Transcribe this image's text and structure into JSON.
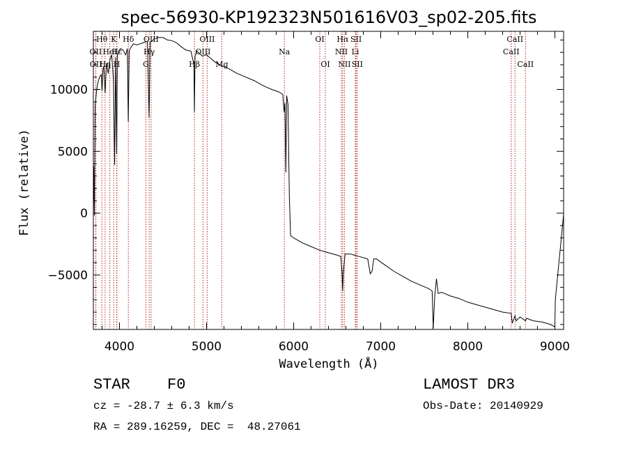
{
  "chart_data": {
    "type": "line",
    "title": "spec-56930-KP192323N501616V03_sp02-205.fits",
    "xlabel": "Wavelength (Å)",
    "ylabel": "Flux (relative)",
    "xlim": [
      3700,
      9100
    ],
    "ylim": [
      -9400,
      14700
    ],
    "xticks": [
      4000,
      5000,
      6000,
      7000,
      8000,
      9000
    ],
    "yticks": [
      -5000,
      0,
      5000,
      10000
    ],
    "series": [
      {
        "name": "flux",
        "x": [
          3700,
          3705,
          3712,
          3720,
          3735,
          3750,
          3770,
          3790,
          3800,
          3810,
          3820,
          3835,
          3850,
          3870,
          3890,
          3910,
          3930,
          3945,
          3955,
          3968,
          3975,
          3990,
          4010,
          4040,
          4070,
          4090,
          4101,
          4112,
          4130,
          4160,
          4200,
          4240,
          4280,
          4320,
          4340,
          4352,
          4370,
          4400,
          4450,
          4500,
          4550,
          4600,
          4650,
          4700,
          4760,
          4820,
          4855,
          4861,
          4868,
          4890,
          4950,
          5000,
          5050,
          5100,
          5180,
          5250,
          5350,
          5450,
          5550,
          5650,
          5750,
          5830,
          5875,
          5890,
          5900,
          5910,
          5920,
          5935,
          5950,
          5965,
          5980,
          6000,
          6100,
          6200,
          6300,
          6400,
          6500,
          6540,
          6556,
          6563,
          6570,
          6590,
          6650,
          6750,
          6850,
          6880,
          6900,
          6920,
          6950,
          7050,
          7150,
          7250,
          7350,
          7450,
          7550,
          7590,
          7603,
          7620,
          7640,
          7660,
          7700,
          7800,
          7900,
          8000,
          8100,
          8200,
          8300,
          8400,
          8498,
          8510,
          8542,
          8555,
          8600,
          8662,
          8675,
          8750,
          8850,
          8950,
          9000,
          9005,
          9100
        ],
        "values": [
          0,
          3800,
          -200,
          8600,
          9800,
          10500,
          11000,
          11200,
          9900,
          11600,
          11900,
          9700,
          12100,
          11300,
          12400,
          12800,
          10800,
          3900,
          12600,
          4800,
          12700,
          13100,
          13300,
          13200,
          12800,
          13300,
          7400,
          13100,
          13400,
          13700,
          13600,
          13700,
          13800,
          13900,
          7700,
          13800,
          13900,
          14100,
          14200,
          14200,
          14000,
          13950,
          13800,
          13500,
          13200,
          13100,
          12000,
          8200,
          12700,
          13100,
          12700,
          12800,
          12500,
          12200,
          11900,
          11700,
          11300,
          11000,
          10700,
          10300,
          10000,
          9800,
          9600,
          8200,
          8900,
          3300,
          9500,
          8800,
          1400,
          -1800,
          -1900,
          -2000,
          -2400,
          -2700,
          -3000,
          -3200,
          -3400,
          -3500,
          -4800,
          -6300,
          -4800,
          -3300,
          -3300,
          -3500,
          -3700,
          -4900,
          -4700,
          -3700,
          -3700,
          -4200,
          -4700,
          -5100,
          -5500,
          -5800,
          -6100,
          -6300,
          -9300,
          -6700,
          -5300,
          -6500,
          -6400,
          -6700,
          -6900,
          -7200,
          -7400,
          -7600,
          -7800,
          -8000,
          -8100,
          -8900,
          -8300,
          -8700,
          -8400,
          -8700,
          -8500,
          -8700,
          -8800,
          -9000,
          -9200,
          -7000,
          -100
        ]
      }
    ],
    "lines": [
      {
        "name": "Hθ",
        "wl": 3798,
        "row": 1
      },
      {
        "name": "OII",
        "wl": 3727,
        "row": 2
      },
      {
        "name": "OII",
        "wl": 3729,
        "row": 3
      },
      {
        "name": "Hη",
        "wl": 3835,
        "row": 3
      },
      {
        "name": "HeI",
        "wl": 3889,
        "row": 2
      },
      {
        "name": "K",
        "wl": 3934,
        "row": 1
      },
      {
        "name": "H",
        "wl": 3969,
        "row": 3
      },
      {
        "name": "Hε",
        "wl": 3970,
        "row": 2
      },
      {
        "name": "Hδ",
        "wl": 4102,
        "row": 1
      },
      {
        "name": "G",
        "wl": 4304,
        "row": 3
      },
      {
        "name": "Hγ",
        "wl": 4341,
        "row": 2
      },
      {
        "name": "OIII",
        "wl": 4363,
        "row": 1
      },
      {
        "name": "Hβ",
        "wl": 4861,
        "row": 3
      },
      {
        "name": "OIII",
        "wl": 4959,
        "row": 2
      },
      {
        "name": "OIII",
        "wl": 5007,
        "row": 1
      },
      {
        "name": "Mg",
        "wl": 5175,
        "row": 3
      },
      {
        "name": "Na",
        "wl": 5894,
        "row": 2
      },
      {
        "name": "OI",
        "wl": 6300,
        "row": 1
      },
      {
        "name": "OI",
        "wl": 6364,
        "row": 3
      },
      {
        "name": "NII",
        "wl": 6548,
        "row": 2
      },
      {
        "name": "Hα",
        "wl": 6563,
        "row": 1
      },
      {
        "name": "NII",
        "wl": 6583,
        "row": 3
      },
      {
        "name": "Li",
        "wl": 6708,
        "row": 2
      },
      {
        "name": "SII",
        "wl": 6717,
        "row": 1
      },
      {
        "name": "SII",
        "wl": 6731,
        "row": 3
      },
      {
        "name": "CaII",
        "wl": 8498,
        "row": 2
      },
      {
        "name": "CaII",
        "wl": 8542,
        "row": 1
      },
      {
        "name": "CaII",
        "wl": 8662,
        "row": 3
      }
    ],
    "line_color": "#b22222"
  },
  "info": {
    "object_class": "STAR",
    "subclass": "F0",
    "survey": "LAMOST DR3",
    "cz": "cz = -28.7 ± 6.3 km/s",
    "obs_date": "Obs-Date: 20140929",
    "coords": "RA = 289.16259, DEC =  48.27061"
  }
}
